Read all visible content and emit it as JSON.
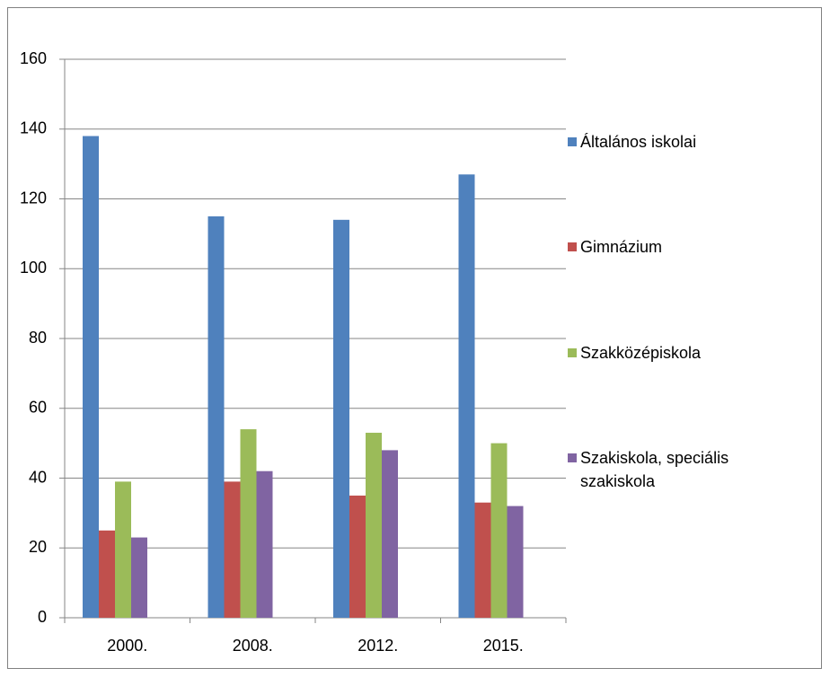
{
  "chart_data": {
    "type": "bar",
    "categories": [
      "2000.",
      "2008.",
      "2012.",
      "2015."
    ],
    "series": [
      {
        "name": "Általános iskolai",
        "color": "#4f81bd",
        "values": [
          138,
          115,
          114,
          127
        ]
      },
      {
        "name": "Gimnázium",
        "color": "#c0504d",
        "values": [
          25,
          39,
          35,
          33
        ]
      },
      {
        "name": "Szakközépiskola",
        "color": "#9bbb59",
        "values": [
          39,
          54,
          53,
          50
        ]
      },
      {
        "name": "Szakiskola, speciális szakiskola",
        "color": "#8064a2",
        "values": [
          23,
          42,
          48,
          32
        ]
      }
    ],
    "ylim": [
      0,
      160
    ],
    "yticks": [
      0,
      20,
      40,
      60,
      80,
      100,
      120,
      140,
      160
    ],
    "grid": true,
    "legend": "right"
  }
}
